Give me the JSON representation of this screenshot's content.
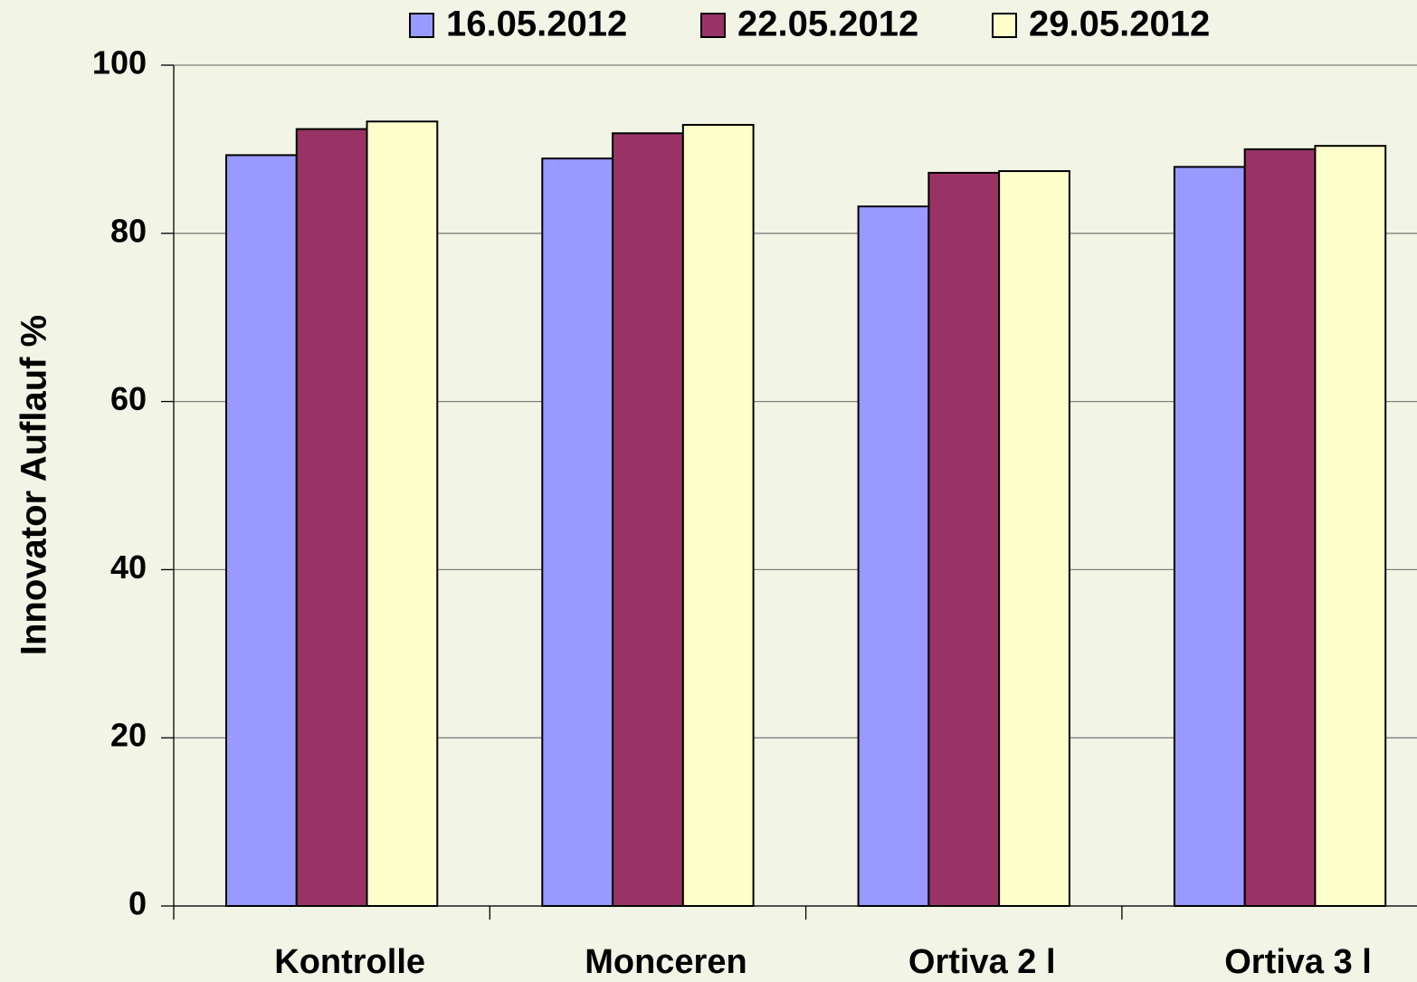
{
  "chart_data": {
    "type": "bar",
    "y_label": "Innovator Auflauf %",
    "categories": [
      "Kontrolle",
      "Monceren",
      "Ortiva 2 l",
      "Ortiva 3 l"
    ],
    "series": [
      {
        "name": "16.05.2012",
        "color": "#9999ff",
        "values": [
          89.3,
          88.9,
          83.2,
          87.9
        ]
      },
      {
        "name": "22.05.2012",
        "color": "#993366",
        "values": [
          92.4,
          91.9,
          87.2,
          90.0
        ]
      },
      {
        "name": "29.05.2012",
        "color": "#ffffcc",
        "values": [
          93.3,
          92.9,
          87.4,
          90.4
        ]
      }
    ],
    "ylim": [
      0,
      100
    ],
    "yticks": [
      0,
      20,
      40,
      60,
      80,
      100
    ],
    "grid": true,
    "legend": "top"
  }
}
